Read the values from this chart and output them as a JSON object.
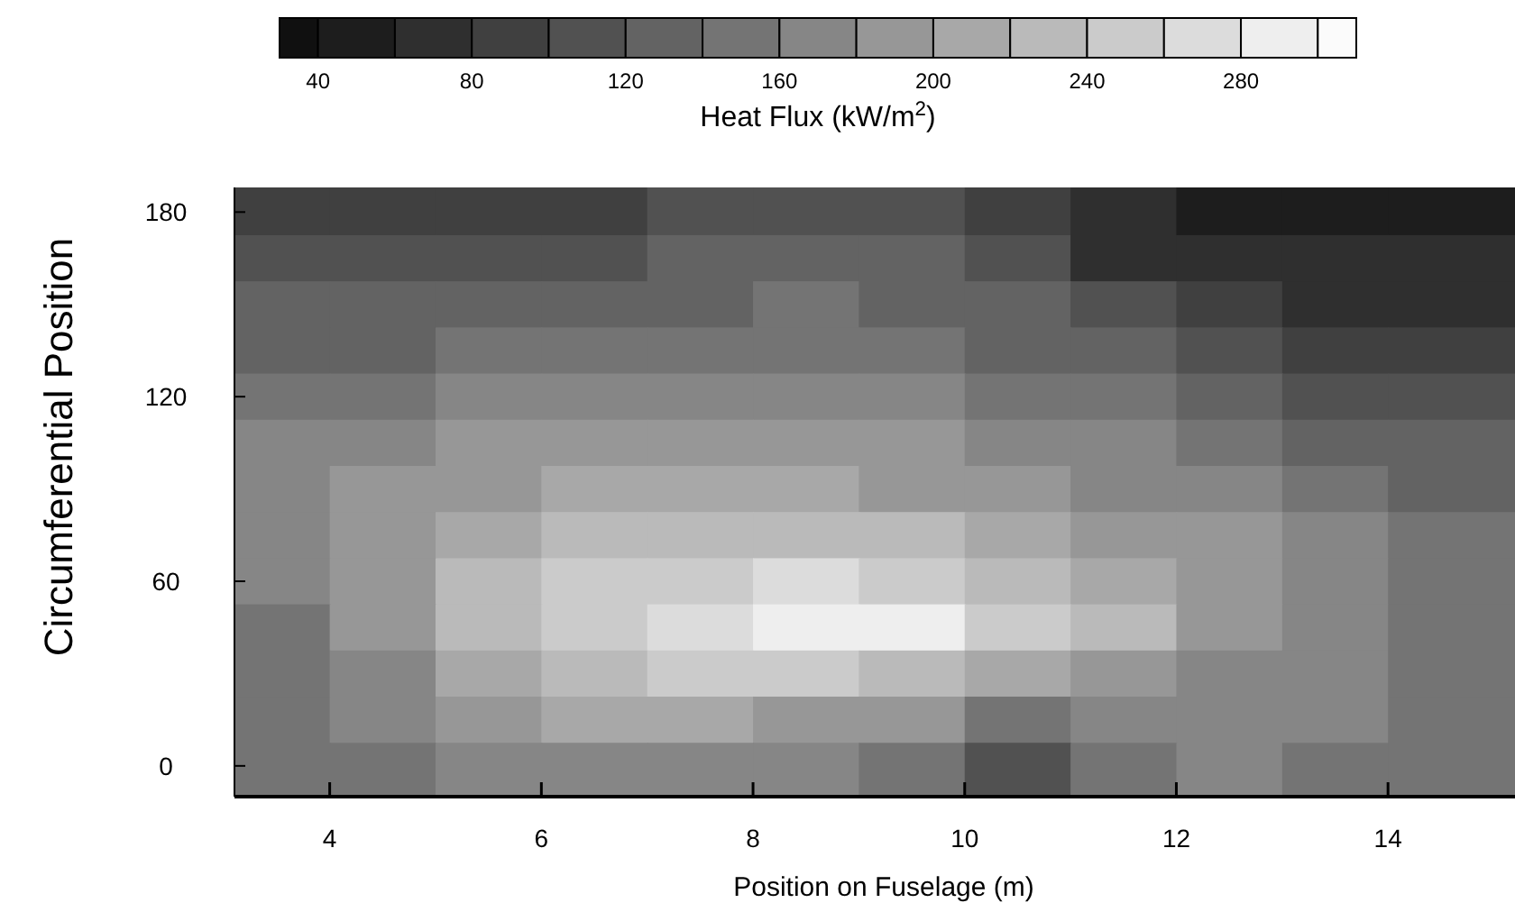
{
  "chart_data": {
    "type": "heatmap",
    "xlabel": "Position on Fuselage (m)",
    "ylabel": "Circumferential Position",
    "clabel": "Heat Flux (kW/m$^{2}$)",
    "x": [
      3.5,
      4.5,
      5.5,
      6.5,
      7.5,
      8.5,
      9.5,
      10.5,
      11.5,
      12.5,
      13.5,
      14.5
    ],
    "y": [
      180,
      165,
      150,
      135,
      120,
      105,
      90,
      75,
      60,
      45,
      30,
      15,
      0
    ],
    "xlim": [
      3.1,
      15.2
    ],
    "ylim": [
      -10,
      188
    ],
    "xticks": [
      4,
      6,
      8,
      10,
      12,
      14
    ],
    "yticks": [
      0,
      60,
      120,
      180
    ],
    "clim": [
      30,
      310
    ],
    "cticks": [
      40,
      80,
      120,
      160,
      200,
      240,
      280
    ],
    "cells": [
      [
        90,
        90,
        90,
        90,
        100,
        110,
        100,
        80,
        60,
        50,
        45,
        45
      ],
      [
        100,
        100,
        100,
        110,
        120,
        130,
        120,
        100,
        70,
        60,
        60,
        60
      ],
      [
        120,
        120,
        120,
        125,
        135,
        140,
        135,
        120,
        100,
        80,
        75,
        75
      ],
      [
        130,
        135,
        140,
        140,
        145,
        150,
        150,
        135,
        120,
        100,
        90,
        90
      ],
      [
        150,
        155,
        160,
        160,
        165,
        170,
        170,
        155,
        140,
        120,
        110,
        105
      ],
      [
        165,
        170,
        180,
        185,
        185,
        185,
        180,
        170,
        160,
        140,
        130,
        120
      ],
      [
        170,
        180,
        195,
        200,
        205,
        205,
        195,
        180,
        175,
        160,
        150,
        135
      ],
      [
        165,
        185,
        210,
        225,
        230,
        235,
        225,
        205,
        190,
        180,
        170,
        150
      ],
      [
        160,
        190,
        220,
        245,
        255,
        265,
        255,
        235,
        210,
        190,
        175,
        155
      ],
      [
        155,
        185,
        220,
        245,
        265,
        285,
        280,
        250,
        220,
        195,
        175,
        150
      ],
      [
        150,
        175,
        210,
        230,
        240,
        245,
        230,
        205,
        185,
        175,
        165,
        145
      ],
      [
        145,
        160,
        195,
        205,
        200,
        195,
        180,
        150,
        170,
        165,
        160,
        140
      ],
      [
        140,
        150,
        175,
        170,
        165,
        160,
        140,
        100,
        150,
        160,
        155,
        140
      ]
    ]
  }
}
